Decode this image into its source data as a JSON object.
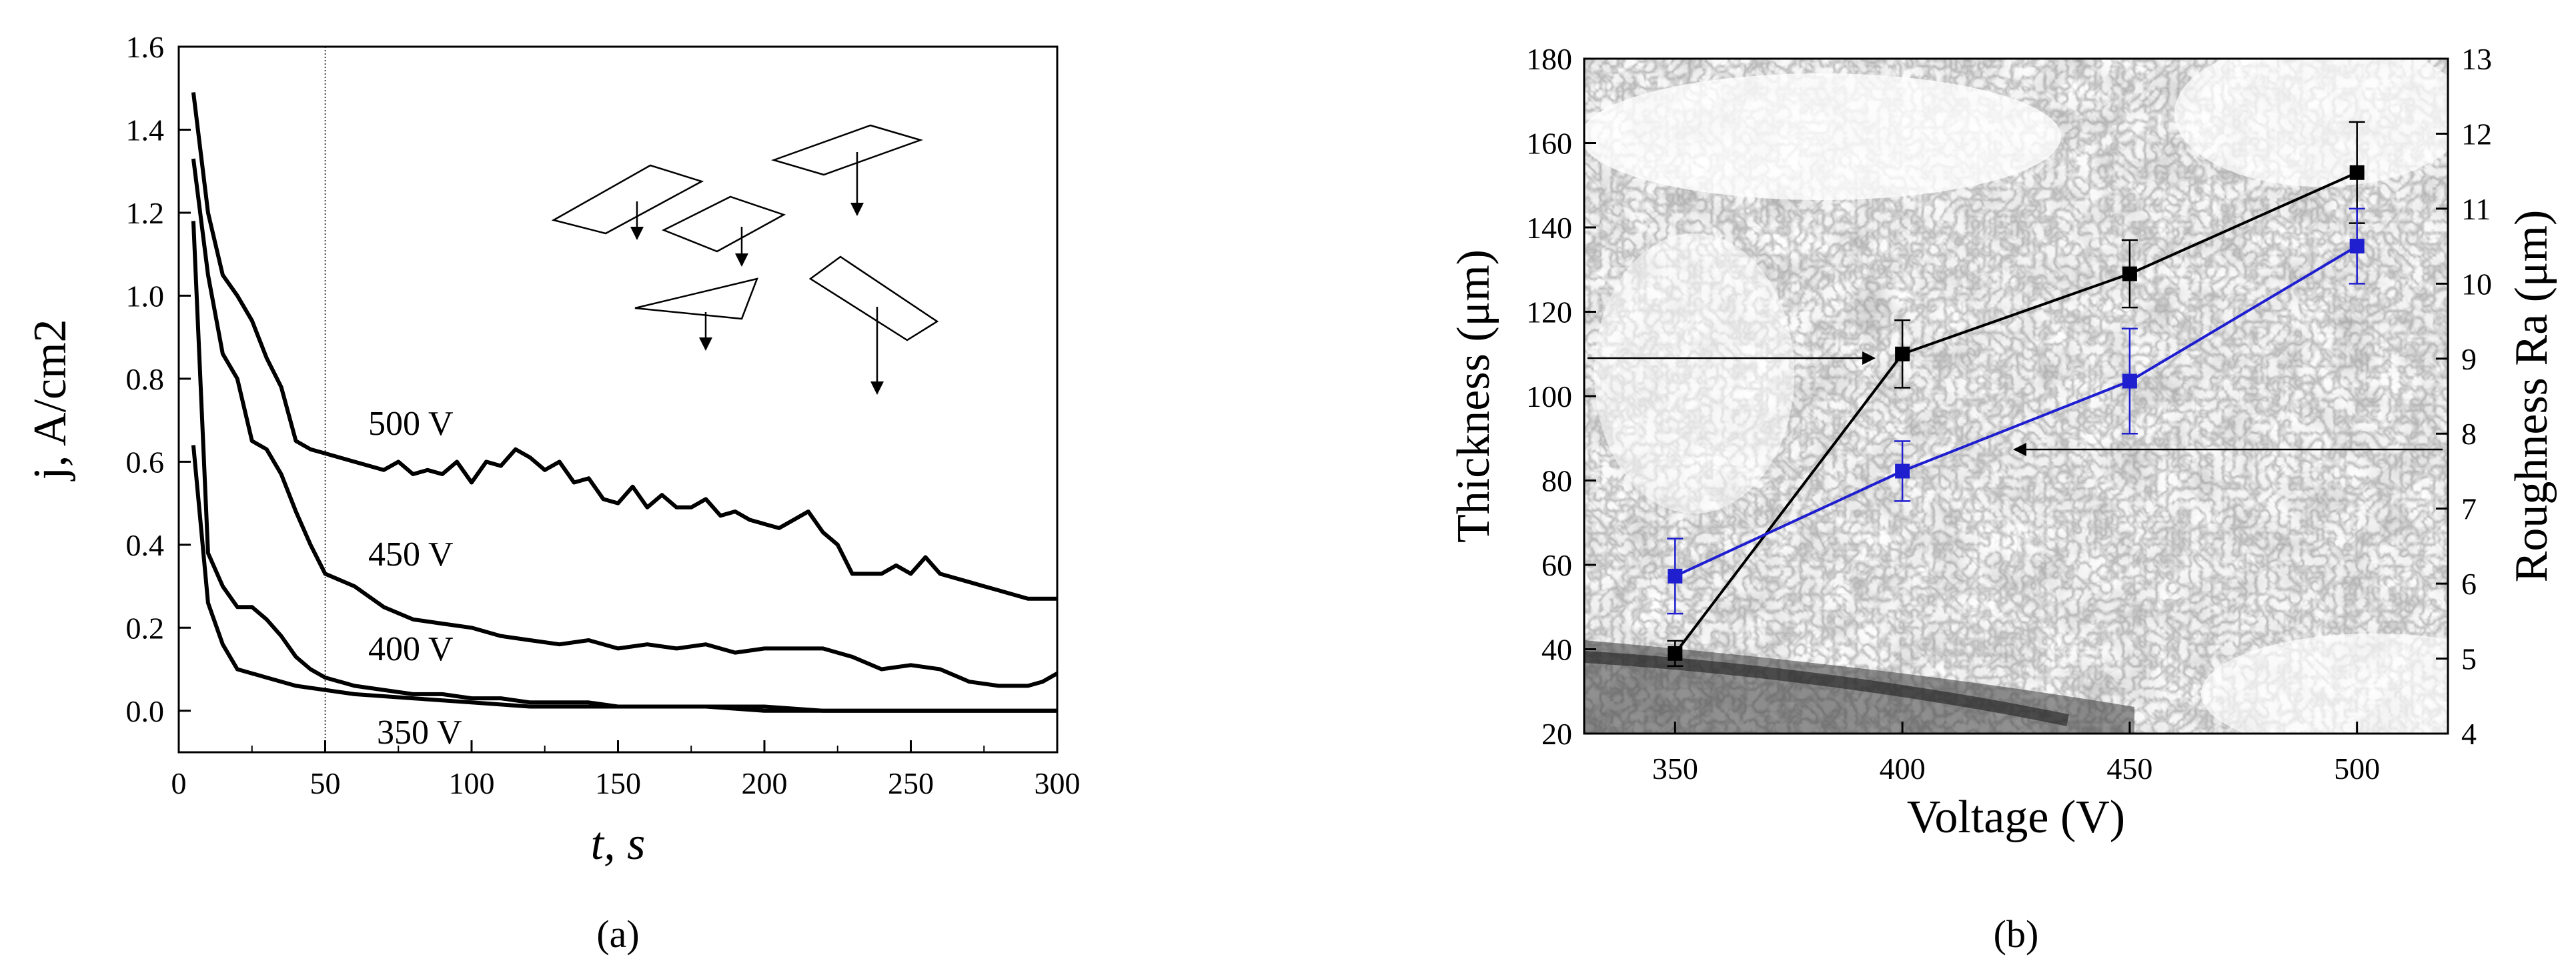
{
  "chart_data": [
    {
      "panel_label": "(a)",
      "type": "line",
      "xlabel": "t, s",
      "ylabel": "j, A/cm2",
      "xlim": [
        0,
        300
      ],
      "ylim": [
        -0.1,
        1.6
      ],
      "x_ticks": [
        0,
        50,
        100,
        150,
        200,
        250,
        300
      ],
      "y_ticks": [
        0.0,
        0.2,
        0.4,
        0.6,
        0.8,
        1.0,
        1.2,
        1.4,
        1.6
      ],
      "reference_line_x": 50,
      "series": [
        {
          "name": "500 V",
          "x": [
            5,
            10,
            15,
            20,
            25,
            30,
            35,
            40,
            45,
            50,
            60,
            70,
            75,
            80,
            85,
            90,
            95,
            100,
            105,
            110,
            115,
            120,
            125,
            130,
            135,
            140,
            145,
            150,
            155,
            160,
            165,
            170,
            175,
            180,
            185,
            190,
            195,
            200,
            205,
            210,
            215,
            220,
            225,
            230,
            235,
            240,
            245,
            250,
            255,
            260,
            265,
            270,
            275,
            280,
            285,
            290,
            295,
            300
          ],
          "values": [
            1.49,
            1.2,
            1.05,
            1.0,
            0.94,
            0.85,
            0.78,
            0.65,
            0.63,
            0.62,
            0.6,
            0.58,
            0.6,
            0.57,
            0.58,
            0.57,
            0.6,
            0.55,
            0.6,
            0.59,
            0.63,
            0.61,
            0.58,
            0.6,
            0.55,
            0.56,
            0.51,
            0.5,
            0.54,
            0.49,
            0.52,
            0.49,
            0.49,
            0.51,
            0.47,
            0.48,
            0.46,
            0.45,
            0.44,
            0.46,
            0.48,
            0.43,
            0.4,
            0.33,
            0.33,
            0.33,
            0.35,
            0.33,
            0.37,
            0.33,
            0.32,
            0.31,
            0.3,
            0.29,
            0.28,
            0.27,
            0.27,
            0.27
          ]
        },
        {
          "name": "450 V",
          "x": [
            5,
            10,
            15,
            20,
            25,
            30,
            35,
            40,
            45,
            50,
            60,
            70,
            80,
            90,
            100,
            110,
            120,
            130,
            140,
            150,
            160,
            170,
            180,
            190,
            200,
            210,
            220,
            230,
            240,
            250,
            260,
            270,
            280,
            290,
            295,
            300
          ],
          "values": [
            1.33,
            1.05,
            0.86,
            0.8,
            0.65,
            0.63,
            0.57,
            0.48,
            0.4,
            0.33,
            0.3,
            0.25,
            0.22,
            0.21,
            0.2,
            0.18,
            0.17,
            0.16,
            0.17,
            0.15,
            0.16,
            0.15,
            0.16,
            0.14,
            0.15,
            0.15,
            0.15,
            0.13,
            0.1,
            0.11,
            0.1,
            0.07,
            0.06,
            0.06,
            0.07,
            0.09
          ]
        },
        {
          "name": "400 V",
          "x": [
            5,
            10,
            15,
            20,
            25,
            30,
            35,
            40,
            45,
            50,
            60,
            70,
            80,
            90,
            100,
            110,
            120,
            130,
            140,
            150,
            160,
            170,
            180,
            200,
            220,
            240,
            260,
            280,
            300
          ],
          "values": [
            1.18,
            0.38,
            0.3,
            0.25,
            0.25,
            0.22,
            0.18,
            0.13,
            0.1,
            0.08,
            0.06,
            0.05,
            0.04,
            0.04,
            0.03,
            0.03,
            0.02,
            0.02,
            0.02,
            0.01,
            0.01,
            0.01,
            0.01,
            0.01,
            0.0,
            0.0,
            0.0,
            0.0,
            0.0
          ]
        },
        {
          "name": "350 V",
          "x": [
            5,
            10,
            15,
            20,
            30,
            40,
            50,
            60,
            80,
            100,
            120,
            140,
            160,
            180,
            200,
            220,
            250,
            300
          ],
          "values": [
            0.64,
            0.26,
            0.16,
            0.1,
            0.08,
            0.06,
            0.05,
            0.04,
            0.03,
            0.02,
            0.01,
            0.01,
            0.01,
            0.01,
            0.0,
            0.0,
            0.0,
            0.0
          ]
        }
      ]
    },
    {
      "panel_label": "(b)",
      "type": "line",
      "xlabel": "Voltage (V)",
      "ylabel": "Thickness (μm)",
      "ylabel_right": "Roughness Ra (μm)",
      "xlim": [
        330,
        520
      ],
      "ylim": [
        20,
        180
      ],
      "ylim_right": [
        4,
        13
      ],
      "x_ticks": [
        350,
        400,
        450,
        500
      ],
      "y_ticks": [
        20,
        40,
        60,
        80,
        100,
        120,
        140,
        160,
        180
      ],
      "y_ticks_right": [
        4,
        5,
        6,
        7,
        8,
        9,
        10,
        11,
        12,
        13
      ],
      "categories": [
        350,
        400,
        450,
        500
      ],
      "series": [
        {
          "name": "Thickness",
          "axis": "left",
          "color": "#000000",
          "values": [
            39,
            110,
            129,
            153
          ],
          "errors": [
            3,
            8,
            8,
            12
          ]
        },
        {
          "name": "Roughness Ra",
          "axis": "right",
          "color": "#1f1fd0",
          "values": [
            6.1,
            7.5,
            8.7,
            10.5
          ],
          "errors": [
            0.5,
            0.4,
            0.7,
            0.5
          ]
        }
      ],
      "background": "SEM micrograph of porous coating"
    }
  ]
}
